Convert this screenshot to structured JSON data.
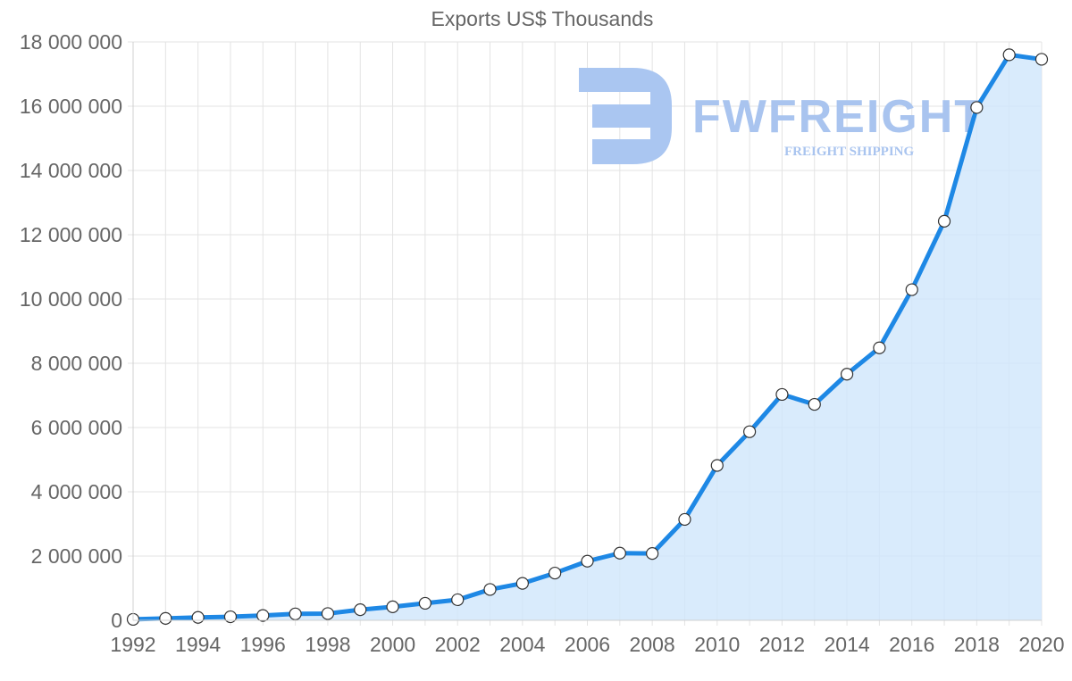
{
  "chart_data": {
    "type": "area",
    "title": "Exports US$ Thousands",
    "xlabel": "",
    "ylabel": "",
    "x": [
      1992,
      1993,
      1994,
      1995,
      1996,
      1997,
      1998,
      1999,
      2000,
      2001,
      2002,
      2003,
      2004,
      2005,
      2006,
      2007,
      2008,
      2009,
      2010,
      2011,
      2012,
      2013,
      2014,
      2015,
      2016,
      2017,
      2018,
      2019,
      2020
    ],
    "series": [
      {
        "name": "Exports US$ Thousands",
        "values": [
          30000,
          60000,
          90000,
          110000,
          150000,
          200000,
          210000,
          330000,
          420000,
          530000,
          640000,
          960000,
          1150000,
          1470000,
          1840000,
          2090000,
          2080000,
          3140000,
          4820000,
          5870000,
          7030000,
          6720000,
          7660000,
          8480000,
          10290000,
          12420000,
          15960000,
          17600000,
          17460000
        ]
      }
    ],
    "xlim": [
      1992,
      2020
    ],
    "ylim": [
      0,
      18000000
    ],
    "x_ticks": [
      "1992",
      "1994",
      "1996",
      "1998",
      "2000",
      "2002",
      "2004",
      "2006",
      "2008",
      "2010",
      "2012",
      "2014",
      "2016",
      "2018",
      "2020"
    ],
    "y_ticks": [
      "0",
      "2 000 000",
      "4 000 000",
      "6 000 000",
      "8 000 000",
      "10 000 000",
      "12 000 000",
      "14 000 000",
      "16 000 000",
      "18 000 000"
    ],
    "grid": true,
    "legend": "none",
    "colors": {
      "line": "#1e88e5",
      "area": "#cfe6fb",
      "point_fill": "#ffffff",
      "point_stroke": "#333333"
    }
  },
  "watermark": {
    "name": "FWFREIGHT",
    "tagline": "FREIGHT SHIPPING"
  }
}
